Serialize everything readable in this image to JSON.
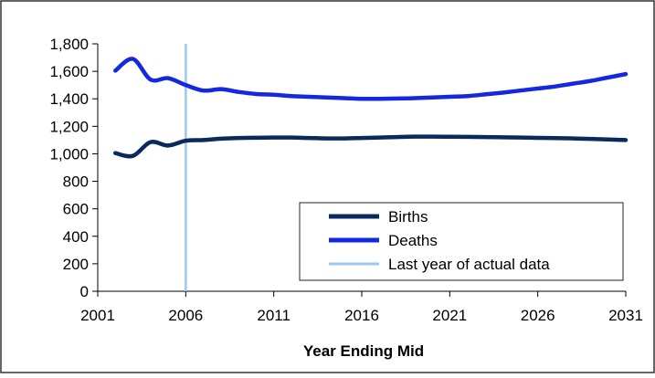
{
  "chart_data": {
    "type": "line",
    "title": "",
    "xlabel": "Year Ending Mid",
    "ylabel": "",
    "xlim": [
      2001,
      2031
    ],
    "ylim": [
      0,
      1800
    ],
    "grid": false,
    "legend_position": "bottom-right",
    "x_ticks": [
      2001,
      2006,
      2011,
      2016,
      2021,
      2026,
      2031
    ],
    "x_tick_labels": [
      "2001",
      "2006",
      "2011",
      "2016",
      "2021",
      "2026",
      "2031"
    ],
    "y_ticks": [
      0,
      200,
      400,
      600,
      800,
      1000,
      1200,
      1400,
      1600,
      1800
    ],
    "y_tick_labels": [
      "0",
      "200",
      "400",
      "600",
      "800",
      "1,000",
      "1,200",
      "1,400",
      "1,600",
      "1,800"
    ],
    "series": [
      {
        "name": "Births",
        "color": "#0a2a5e",
        "x": [
          2002,
          2003,
          2004,
          2005,
          2006,
          2007,
          2008,
          2009,
          2010,
          2011,
          2012,
          2013,
          2014,
          2015,
          2016,
          2017,
          2018,
          2019,
          2020,
          2021,
          2022,
          2023,
          2024,
          2025,
          2026,
          2027,
          2028,
          2029,
          2030,
          2031
        ],
        "values": [
          1005,
          985,
          1085,
          1060,
          1095,
          1100,
          1110,
          1115,
          1117,
          1118,
          1118,
          1115,
          1112,
          1112,
          1115,
          1118,
          1122,
          1125,
          1125,
          1124,
          1123,
          1122,
          1120,
          1118,
          1116,
          1114,
          1112,
          1108,
          1104,
          1100
        ]
      },
      {
        "name": "Deaths",
        "color": "#1428e0",
        "x": [
          2002,
          2003,
          2004,
          2005,
          2006,
          2007,
          2008,
          2009,
          2010,
          2011,
          2012,
          2013,
          2014,
          2015,
          2016,
          2017,
          2018,
          2019,
          2020,
          2021,
          2022,
          2023,
          2024,
          2025,
          2026,
          2027,
          2028,
          2029,
          2030,
          2031
        ],
        "values": [
          1605,
          1690,
          1540,
          1550,
          1500,
          1460,
          1470,
          1450,
          1435,
          1430,
          1420,
          1415,
          1410,
          1405,
          1400,
          1400,
          1402,
          1405,
          1410,
          1415,
          1420,
          1432,
          1445,
          1460,
          1475,
          1490,
          1510,
          1530,
          1555,
          1580
        ]
      }
    ],
    "reference_line": {
      "name": "Last year of actual data",
      "x": 2006,
      "color": "#9cc8f0"
    }
  }
}
